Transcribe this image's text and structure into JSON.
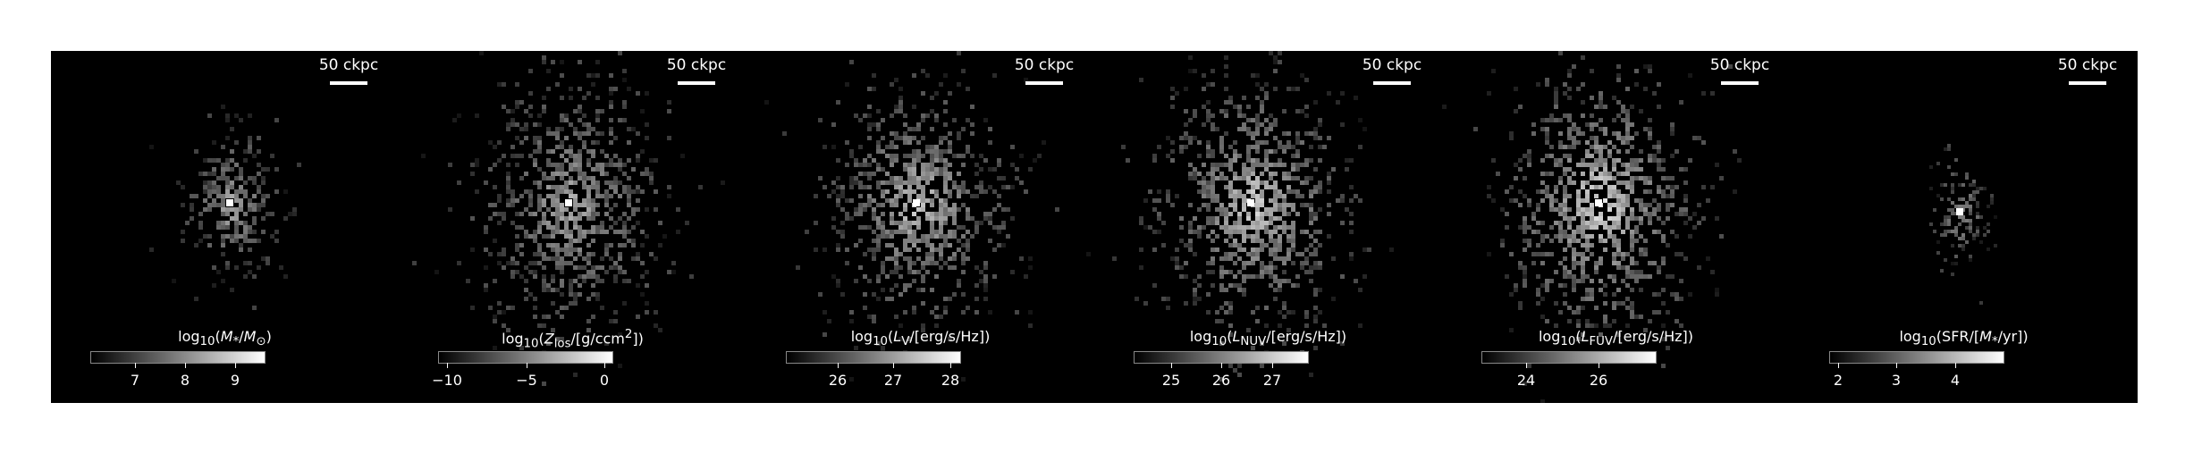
{
  "figure": {
    "panels": [
      {
        "id": "stellar-mass",
        "scale_bar_label": "50 ckpc",
        "colorbar": {
          "label_parts": [
            "log",
            "10",
            "(",
            "M",
            "*",
            "/",
            "M",
            "⊙",
            ")"
          ],
          "label_text": "log10(M*/M⊙)",
          "ticks": [
            "7",
            "8",
            "9"
          ]
        }
      },
      {
        "id": "metallicity",
        "scale_bar_label": "50 ckpc",
        "colorbar": {
          "label_text": "log10(Zlos/[g/ccm2])",
          "ticks": [
            "−10",
            "−5",
            "0"
          ]
        }
      },
      {
        "id": "v-band-luminosity",
        "scale_bar_label": "50 ckpc",
        "colorbar": {
          "label_text": "log10(LV/[erg/s/Hz])",
          "ticks": [
            "26",
            "27",
            "28"
          ]
        }
      },
      {
        "id": "nuv-luminosity",
        "scale_bar_label": "50 ckpc",
        "colorbar": {
          "label_text": "log10(LNUV/[erg/s/Hz])",
          "ticks": [
            "25",
            "26",
            "27"
          ]
        }
      },
      {
        "id": "fuv-luminosity",
        "scale_bar_label": "50 ckpc",
        "colorbar": {
          "label_text": "log10(LFUV/[erg/s/Hz])",
          "ticks": [
            "24",
            "26"
          ]
        }
      },
      {
        "id": "star-formation-rate",
        "scale_bar_label": "50 ckpc",
        "colorbar": {
          "label_text": "log10(SFR/[M*/yr])",
          "ticks": [
            "2",
            "3",
            "4"
          ]
        }
      }
    ]
  }
}
